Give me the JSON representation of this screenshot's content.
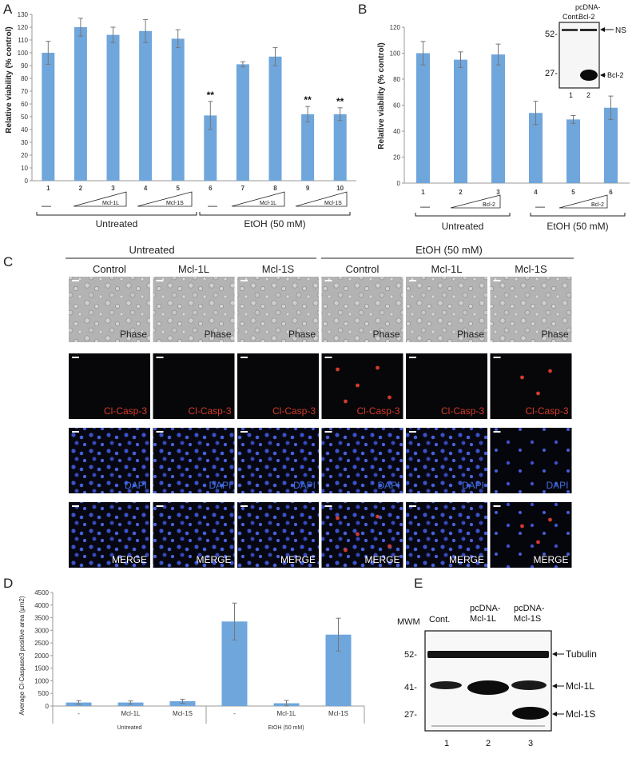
{
  "panels": {
    "a": "A",
    "b": "B",
    "c": "C",
    "d": "D",
    "e": "E"
  },
  "colors": {
    "bar": "#6fa6dc",
    "bar_stroke": "#5b93cc",
    "error": "#777777",
    "phase_bg": "#b5b5b5",
    "dark_bg": "#070709",
    "red": "#d23b2a",
    "blue": "#3a58d0"
  },
  "panelA": {
    "chart_data": {
      "type": "bar",
      "ylabel": "Relative viability (% control)",
      "ylim": [
        0,
        130
      ],
      "yticks": [
        0,
        10,
        20,
        30,
        40,
        50,
        60,
        70,
        80,
        90,
        100,
        110,
        120,
        130
      ],
      "categories": [
        "1",
        "2",
        "3",
        "4",
        "5",
        "6",
        "7",
        "8",
        "9",
        "10"
      ],
      "values": [
        100,
        120,
        114,
        117,
        111,
        51,
        91,
        97,
        52,
        52
      ],
      "errors": [
        9,
        7,
        6,
        9,
        7,
        11,
        2,
        7,
        6,
        5
      ],
      "significance": [
        "",
        "",
        "",
        "",
        "",
        "**",
        "",
        "",
        "**",
        "**"
      ]
    },
    "dash": "—",
    "tri_labels": [
      "Mcl-1L",
      "Mcl-1S",
      "Mcl-1L",
      "Mcl-1S"
    ],
    "groups": [
      "Untreated",
      "EtOH (50 mM)"
    ]
  },
  "panelB": {
    "chart_data": {
      "type": "bar",
      "ylabel": "Relative viability (% control)",
      "ylim": [
        0,
        120
      ],
      "yticks": [
        0,
        20,
        40,
        60,
        80,
        100,
        120
      ],
      "categories": [
        "1",
        "2",
        "3",
        "4",
        "5",
        "6"
      ],
      "values": [
        100,
        95,
        99,
        54,
        49,
        58
      ],
      "errors": [
        9,
        6,
        8,
        9,
        3,
        9
      ]
    },
    "dash": "—",
    "tri_labels": [
      "Bcl-2",
      "Bcl-2"
    ],
    "groups": [
      "Untreated",
      "EtOH (50 mM)"
    ],
    "inset": {
      "col1": "Cont.",
      "col2_line1": "pcDNA-",
      "col2_line2": "Bcl-2",
      "mw52": "52-",
      "mw27": "27-",
      "ns": "NS",
      "bcl2": "Bcl-2",
      "lane1": "1",
      "lane2": "2"
    }
  },
  "panelC": {
    "groups": [
      "Untreated",
      "EtOH (50 mM)"
    ],
    "columns": [
      "Control",
      "Mcl-1L",
      "Mcl-1S",
      "Control",
      "Mcl-1L",
      "Mcl-1S"
    ],
    "rows": [
      "Phase",
      "Cl-Casp-3",
      "DAPI",
      "MERGE"
    ]
  },
  "panelD": {
    "chart_data": {
      "type": "bar",
      "ylabel": "Average Cl-Caspase3 positive area (µm2)",
      "ylim": [
        0,
        4500
      ],
      "yticks": [
        0,
        500,
        1000,
        1500,
        2000,
        2500,
        3000,
        3500,
        4000,
        4500
      ],
      "categories": [
        "-",
        "Mcl-1L",
        "Mcl-1S",
        "-",
        "Mcl-1L",
        "Mcl-1S"
      ],
      "values": [
        140,
        140,
        190,
        3350,
        110,
        2830
      ],
      "errors": [
        70,
        60,
        80,
        730,
        110,
        650
      ]
    },
    "groups": [
      "Untreated",
      "EtOH (50 mM)"
    ]
  },
  "panelE": {
    "mwm": "MWM",
    "col1": "Cont.",
    "col2": [
      "pcDNA-",
      "Mcl-1L"
    ],
    "col3": [
      "pcDNA-",
      "Mcl-1S"
    ],
    "mw": [
      "52-",
      "41-",
      "27-"
    ],
    "bands": [
      "Tubulin",
      "Mcl-1L",
      "Mcl-1S"
    ],
    "lanes": [
      "1",
      "2",
      "3"
    ]
  }
}
